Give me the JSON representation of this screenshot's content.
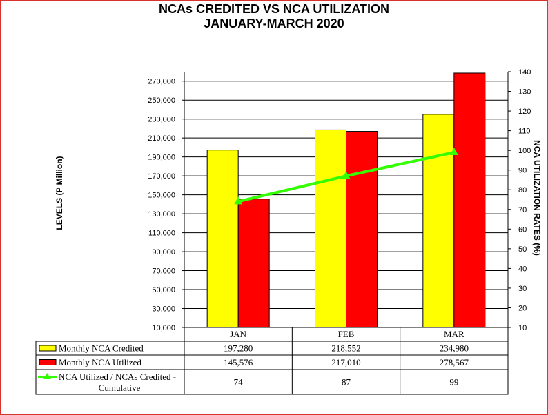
{
  "chart_data": {
    "type": "bar",
    "title": "NCAs CREDITED VS NCA UTILIZATION",
    "subtitle": "JANUARY-MARCH 2020",
    "categories": [
      "JAN",
      "FEB",
      "MAR"
    ],
    "series": [
      {
        "name": "Monthly NCA Credited",
        "type": "bar",
        "axis": "left",
        "color": "#ffff00",
        "values": [
          197280,
          218552,
          234980
        ],
        "labels": [
          "197,280",
          "218,552",
          "234,980"
        ]
      },
      {
        "name": "Monthly NCA Utilized",
        "type": "bar",
        "axis": "left",
        "color": "#ff0000",
        "values": [
          145576,
          217010,
          278567
        ],
        "labels": [
          "145,576",
          "217,010",
          "278,567"
        ]
      },
      {
        "name": "NCA Utilized / NCAs Credited - Cumulative",
        "name_lines": [
          "NCA Utilized / NCAs Credited -",
          "Cumulative"
        ],
        "type": "line",
        "axis": "right",
        "color": "#33ff00",
        "values": [
          74,
          87,
          99
        ],
        "labels": [
          "74",
          "87",
          "99"
        ]
      }
    ],
    "ylabel": "LEVELS (P Million)",
    "y2label": "NCA UTILIZATION RATES (%)",
    "ylim": [
      10000,
      280000
    ],
    "y2lim": [
      10,
      140
    ],
    "yticks": [
      10000,
      30000,
      50000,
      70000,
      90000,
      110000,
      130000,
      150000,
      170000,
      190000,
      210000,
      230000,
      250000,
      270000
    ],
    "ytick_labels": [
      "10,000",
      "30,000",
      "50,000",
      "70,000",
      "90,000",
      "110,000",
      "130,000",
      "150,000",
      "170,000",
      "190,000",
      "210,000",
      "230,000",
      "250,000",
      "270,000"
    ],
    "y2ticks": [
      10,
      20,
      30,
      40,
      50,
      60,
      70,
      80,
      90,
      100,
      110,
      120,
      130,
      140
    ],
    "y2tick_labels": [
      "10",
      "20",
      "30",
      "40",
      "50",
      "60",
      "70",
      "80",
      "90",
      "100",
      "110",
      "120",
      "130",
      "140"
    ],
    "grid": true,
    "legend": "data table below plot"
  }
}
